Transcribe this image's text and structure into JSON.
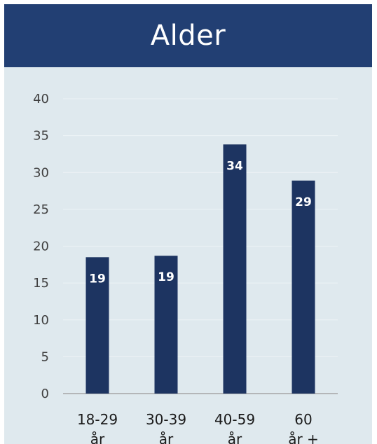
{
  "title": "Alder",
  "colors": {
    "header": "#223f73",
    "panel": "#dfe9ee",
    "bar": "#1d3461"
  },
  "chart_data": {
    "type": "bar",
    "categories": [
      [
        "18-29",
        "år"
      ],
      [
        "30-39",
        "år"
      ],
      [
        "40-59",
        "år"
      ],
      [
        "60",
        "år +"
      ]
    ],
    "values": [
      18.5,
      18.7,
      33.8,
      28.9
    ],
    "data_labels": [
      "19",
      "19",
      "34",
      "29"
    ],
    "yticks": [
      "0",
      "5",
      "10",
      "15",
      "20",
      "25",
      "30",
      "35",
      "40"
    ],
    "ylim": [
      0,
      40
    ],
    "xlabel": "",
    "ylabel": "",
    "grid": true,
    "legend": "none"
  }
}
